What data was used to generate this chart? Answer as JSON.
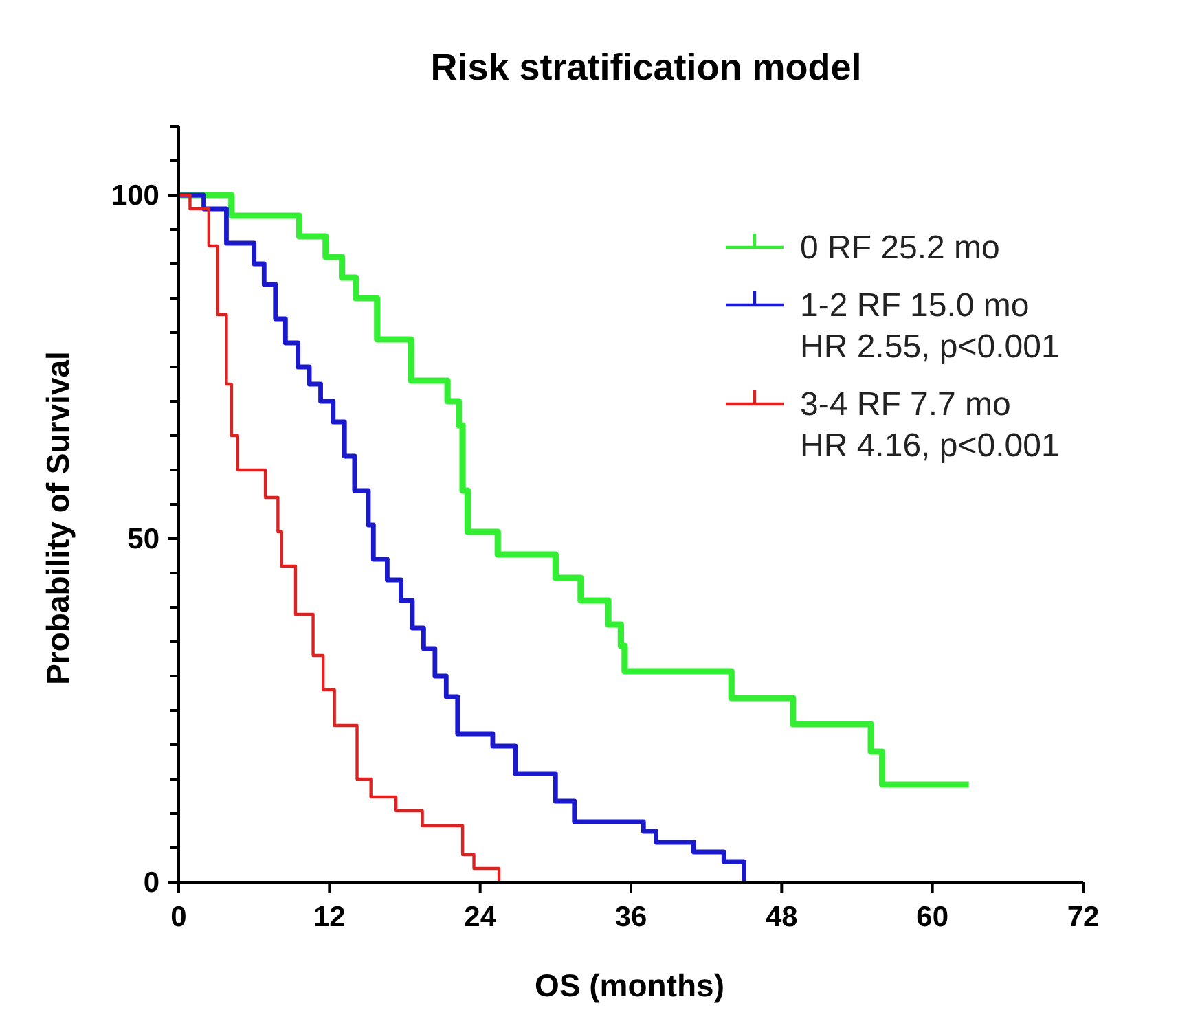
{
  "chart_data": {
    "type": "step",
    "title": "Risk stratification model",
    "xlabel": "OS (months)",
    "ylabel": "Probability of Survival",
    "xlim": [
      0,
      72
    ],
    "xticks": [
      0,
      12,
      24,
      36,
      48,
      60,
      72
    ],
    "ylim": [
      0,
      110
    ],
    "yticks": [
      0,
      {
        "value": 5,
        "label": null
      },
      {
        "value": 10,
        "label": null
      },
      {
        "value": 15,
        "label": null
      },
      {
        "value": 20,
        "label": null
      },
      {
        "value": 25,
        "label": null
      },
      {
        "value": 30,
        "label": null
      },
      {
        "value": 35,
        "label": null
      },
      {
        "value": 40,
        "label": null
      },
      {
        "value": 45,
        "label": null
      },
      50,
      {
        "value": 55,
        "label": null
      },
      {
        "value": 60,
        "label": null
      },
      {
        "value": 65,
        "label": null
      },
      {
        "value": 70,
        "label": null
      },
      {
        "value": 75,
        "label": null
      },
      {
        "value": 80,
        "label": null
      },
      {
        "value": 85,
        "label": null
      },
      {
        "value": 90,
        "label": null
      },
      {
        "value": 95,
        "label": null
      },
      100,
      {
        "value": 105,
        "label": null
      },
      {
        "value": 110,
        "label": null
      }
    ],
    "legend": "top right",
    "grid": false,
    "marker": "none",
    "line_style": "solid",
    "series": [
      {
        "name": "0 RF 25.2 mo",
        "color": "#33ee33",
        "x": [
          0,
          4.2,
          9.6,
          11.7,
          13,
          14.1,
          15.8,
          18.5,
          21.4,
          22.3,
          22.6,
          23,
          25.4,
          30,
          32,
          34.2,
          35.2,
          35.5,
          44,
          48.9,
          55.1,
          56,
          62.9
        ],
        "values": [
          100,
          97,
          94,
          91,
          88,
          85,
          79,
          73,
          70,
          66.5,
          57,
          51,
          47.7,
          44.3,
          41,
          37.5,
          34.4,
          30.7,
          26.8,
          23,
          19,
          14.2,
          14.2
        ]
      },
      {
        "name": "1-2 RF 15.0 mo\nHR 2.55, p<0.001",
        "color": "#1a1acc",
        "x": [
          0,
          2,
          3.8,
          4.9,
          6,
          6.8,
          7.7,
          8.5,
          9.5,
          10.4,
          11.3,
          12.3,
          13.2,
          14,
          15.1,
          15.5,
          16.6,
          17.7,
          18.6,
          19.5,
          20.4,
          21.3,
          22.2,
          25,
          26.8,
          30,
          31.5,
          37,
          38,
          41,
          43.4,
          45
        ],
        "values": [
          100,
          98,
          93,
          93,
          90,
          87,
          82,
          78.5,
          75,
          72.5,
          70,
          67,
          62,
          57,
          52,
          47,
          44,
          41,
          37,
          34,
          30,
          27,
          21.6,
          19.8,
          15.8,
          11.8,
          8.8,
          7.4,
          5.8,
          4.4,
          3,
          0
        ]
      },
      {
        "name": "3-4 RF 7.7 mo\nHR 4.16, p<0.001",
        "color": "#dd2222",
        "x": [
          0,
          0.9,
          2.4,
          3.1,
          3.8,
          4.2,
          4.7,
          6.9,
          7.9,
          8.2,
          9.3,
          10.7,
          11.5,
          12.4,
          14.2,
          15.3,
          17.3,
          19.4,
          22.6,
          23.5,
          25.5
        ],
        "values": [
          100,
          98,
          92.6,
          82.6,
          72.5,
          65,
          60,
          56,
          51,
          46,
          39,
          33,
          28,
          22.8,
          15,
          12.4,
          10.4,
          8.2,
          4,
          2,
          0
        ]
      }
    ]
  }
}
